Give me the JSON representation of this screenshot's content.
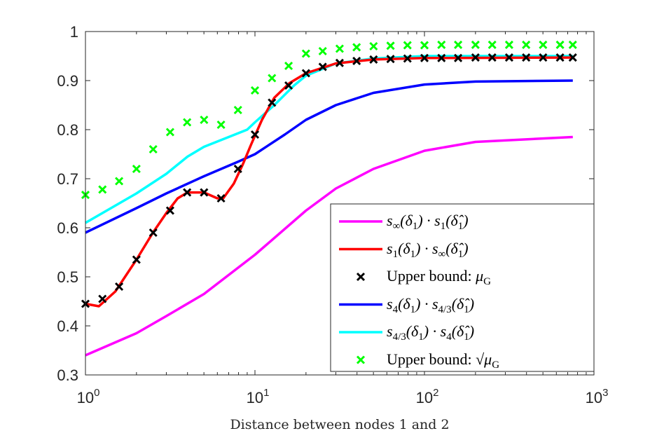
{
  "chart_data": {
    "type": "line",
    "xlabel": "Distance between nodes 1 and 2",
    "ylabel": "",
    "xscale": "log",
    "xlim": [
      1,
      1000
    ],
    "ylim": [
      0.3,
      1
    ],
    "xticks": [
      {
        "base": "10",
        "exp": "0",
        "value": 1
      },
      {
        "base": "10",
        "exp": "1",
        "value": 10
      },
      {
        "base": "10",
        "exp": "2",
        "value": 100
      },
      {
        "base": "10",
        "exp": "3",
        "value": 1000
      }
    ],
    "yticks": [
      "0.3",
      "0.4",
      "0.5",
      "0.6",
      "0.7",
      "0.8",
      "0.9",
      "1"
    ],
    "grid": false,
    "legend_position": "bottom-right",
    "series": [
      {
        "name": "s_{∞}(δ_{1}) · s_{1}(δ̂_{1})",
        "kind": "line",
        "color": "#ff00ff",
        "x": [
          1,
          2,
          3,
          5,
          10,
          20,
          30,
          50,
          100,
          200,
          750
        ],
        "y": [
          0.34,
          0.385,
          0.42,
          0.465,
          0.545,
          0.635,
          0.68,
          0.72,
          0.757,
          0.775,
          0.785
        ]
      },
      {
        "name": "s_{1}(δ_{1}) · s_{∞}(δ̂_{1})",
        "kind": "line",
        "color": "#ff0000",
        "x": [
          1,
          1.2,
          1.5,
          2,
          2.5,
          3,
          3.5,
          4,
          5,
          6,
          6.5,
          7.5,
          8.5,
          9.5,
          11,
          13,
          16,
          20,
          30,
          50,
          100,
          750
        ],
        "y": [
          0.445,
          0.44,
          0.47,
          0.535,
          0.59,
          0.63,
          0.66,
          0.672,
          0.672,
          0.66,
          0.66,
          0.69,
          0.73,
          0.77,
          0.82,
          0.865,
          0.895,
          0.915,
          0.935,
          0.943,
          0.946,
          0.947
        ]
      },
      {
        "name": "Upper bound: μ_{G}",
        "kind": "marker",
        "color": "#000000",
        "x": [
          1,
          1.26,
          1.58,
          2,
          2.51,
          3.16,
          3.98,
          5.01,
          6.31,
          7.94,
          10,
          12.6,
          15.8,
          20,
          25.1,
          31.6,
          39.8,
          50.1,
          63.1,
          79.4,
          100,
          126,
          158,
          200,
          251,
          316,
          398,
          501,
          631,
          750
        ],
        "y": [
          0.445,
          0.455,
          0.48,
          0.535,
          0.59,
          0.635,
          0.672,
          0.672,
          0.66,
          0.72,
          0.79,
          0.855,
          0.89,
          0.915,
          0.928,
          0.936,
          0.94,
          0.943,
          0.944,
          0.945,
          0.946,
          0.946,
          0.946,
          0.947,
          0.947,
          0.947,
          0.947,
          0.947,
          0.947,
          0.947
        ]
      },
      {
        "name": "s_{4}(δ_{1}) · s_{4/3}(δ̂_{1})",
        "kind": "line",
        "color": "#0000ff",
        "x": [
          1,
          2,
          3,
          5,
          8,
          10,
          15,
          20,
          30,
          50,
          100,
          200,
          750
        ],
        "y": [
          0.59,
          0.64,
          0.67,
          0.705,
          0.735,
          0.75,
          0.79,
          0.82,
          0.85,
          0.875,
          0.892,
          0.898,
          0.9
        ]
      },
      {
        "name": "s_{4/3}(δ_{1}) · s_{4}(δ̂_{1})",
        "kind": "line",
        "color": "#00ffff",
        "x": [
          1,
          2,
          3,
          4,
          5,
          7,
          9,
          10,
          13,
          17,
          20,
          30,
          50,
          100,
          750
        ],
        "y": [
          0.61,
          0.67,
          0.71,
          0.745,
          0.765,
          0.785,
          0.8,
          0.815,
          0.85,
          0.89,
          0.91,
          0.935,
          0.945,
          0.95,
          0.95
        ]
      },
      {
        "name": "Upper bound: √μ_{G}",
        "kind": "marker",
        "color": "#00ff00",
        "x": [
          1,
          1.26,
          1.58,
          2,
          2.51,
          3.16,
          3.98,
          5.01,
          6.31,
          7.94,
          10,
          12.6,
          15.8,
          20,
          25.1,
          31.6,
          39.8,
          50.1,
          63.1,
          79.4,
          100,
          126,
          158,
          200,
          251,
          316,
          398,
          501,
          631,
          750
        ],
        "y": [
          0.667,
          0.678,
          0.695,
          0.72,
          0.76,
          0.795,
          0.815,
          0.82,
          0.81,
          0.84,
          0.88,
          0.905,
          0.93,
          0.955,
          0.96,
          0.965,
          0.968,
          0.97,
          0.971,
          0.972,
          0.972,
          0.973,
          0.973,
          0.973,
          0.973,
          0.973,
          0.973,
          0.973,
          0.973,
          0.973
        ]
      }
    ]
  }
}
